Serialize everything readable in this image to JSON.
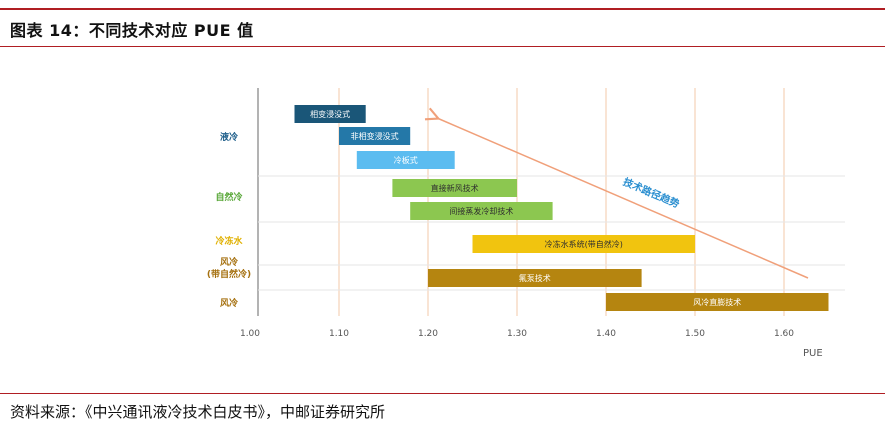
{
  "page": {
    "title": "图表 14：不同技术对应 PUE 值",
    "source": "资料来源：《中兴通讯液冷技术白皮书》，中邮证券研究所"
  },
  "chart_data": {
    "type": "bar",
    "subtype": "floating-range-bar (Gantt)",
    "xlabel": "PUE",
    "ylabel": "",
    "xlim": [
      1.0,
      1.65
    ],
    "xticks": [
      "1.00",
      "1.10",
      "1.20",
      "1.30",
      "1.40",
      "1.50",
      "1.60"
    ],
    "grid": "vertical",
    "categories": [
      {
        "label": "液冷",
        "color": "#1f5f8b"
      },
      {
        "label": "自然冷",
        "color": "#5aa83a"
      },
      {
        "label": "冷冻水",
        "color": "#e0b000"
      },
      {
        "label": "风冷\n(带自然冷)",
        "color": "#a5700f"
      },
      {
        "label": "风冷",
        "color": "#a5700f"
      }
    ],
    "bars": [
      {
        "label": "相变浸没式",
        "category": "液冷",
        "start": 1.05,
        "end": 1.13,
        "color": "#1a5678",
        "text_color": "#ffffff"
      },
      {
        "label": "非相变浸没式",
        "category": "液冷",
        "start": 1.1,
        "end": 1.18,
        "color": "#2478a8",
        "text_color": "#ffffff"
      },
      {
        "label": "冷板式",
        "category": "液冷",
        "start": 1.12,
        "end": 1.23,
        "color": "#5bbcf0",
        "text_color": "#ffffff"
      },
      {
        "label": "直接新风技术",
        "category": "自然冷",
        "start": 1.16,
        "end": 1.3,
        "color": "#8cc750",
        "text_color": "#2f2f2f"
      },
      {
        "label": "间接蒸发冷却技术",
        "category": "自然冷",
        "start": 1.18,
        "end": 1.34,
        "color": "#8cc750",
        "text_color": "#2f2f2f"
      },
      {
        "label": "冷冻水系统(带自然冷)",
        "category": "冷冻水",
        "start": 1.25,
        "end": 1.5,
        "color": "#f1c40f",
        "text_color": "#2f2f2f"
      },
      {
        "label": "氟泵技术",
        "category": "风冷(带自然冷)",
        "start": 1.2,
        "end": 1.44,
        "color": "#b58510",
        "text_color": "#ffffff"
      },
      {
        "label": "风冷直膨技术",
        "category": "风冷",
        "start": 1.4,
        "end": 1.65,
        "color": "#b58510",
        "text_color": "#ffffff"
      }
    ],
    "annotation": {
      "text": "技术路径趋势",
      "arrow_from": [
        1.63,
        "风冷(带自然冷)"
      ],
      "arrow_to": [
        1.2,
        "液冷"
      ],
      "color": "#f0a07a"
    }
  }
}
